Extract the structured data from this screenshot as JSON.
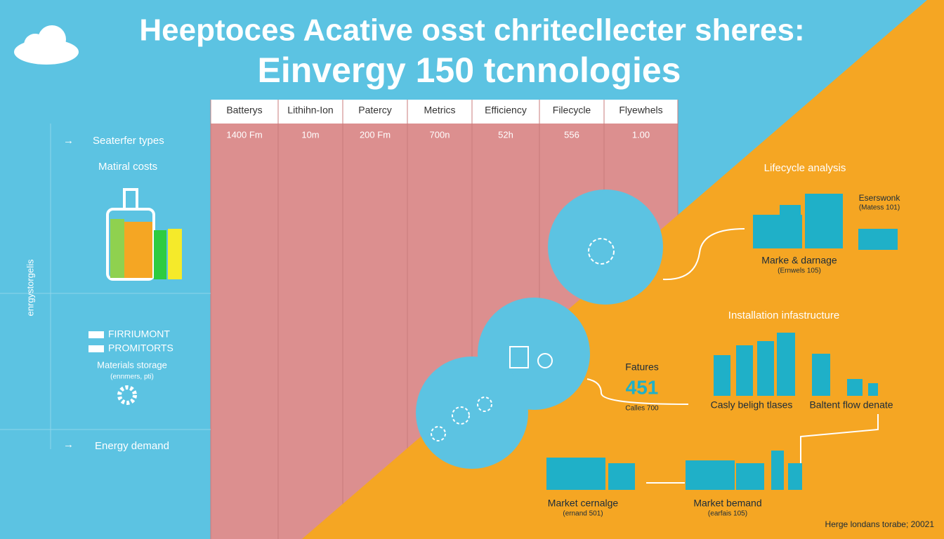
{
  "header": {
    "title_line1": "Heeptoces Acative osst chritecllecter sheres:",
    "title_line2": "Einvergy 150 tcnnologies"
  },
  "table": {
    "columns": [
      "Batterys",
      "Lithihn-Ion",
      "Patercy",
      "Metrics",
      "Efficiency",
      "Filecycle",
      "Flyewhels"
    ],
    "rows": [
      [
        "1400 Fm",
        "10m",
        "200 Fm",
        "700n",
        "52h",
        "556",
        "1.00"
      ]
    ]
  },
  "left_panel": {
    "types": "Seaterfer types",
    "costs": "Matiral costs",
    "vertical": "enrgystorgelis",
    "legend": [
      "FIRRIUMONT",
      "PROMITORTS"
    ],
    "storage": "Materials storage",
    "storage_note": "(ennmers, pti)",
    "demand": "Energy demand"
  },
  "right_panel": {
    "lifecycle": "Lifecycle analysis",
    "network": "Eserswonk",
    "network_note": "(Matess 101)",
    "damage": "Marke & darnage",
    "damage_note": "(Ernwels 105)",
    "infrastructure": "Installation infastructure",
    "features": "Fatures",
    "features_value": "451",
    "features_note": "Calles 700",
    "tlases": "Casly beligh tlases",
    "flow": "Baltent flow denate",
    "market_left": "Market cernalge",
    "market_left_note": "(ernand 501)",
    "market_right": "Market bemand",
    "market_right_note": "(earfais 105)",
    "footer": "Herge londans torabe; 20021"
  }
}
